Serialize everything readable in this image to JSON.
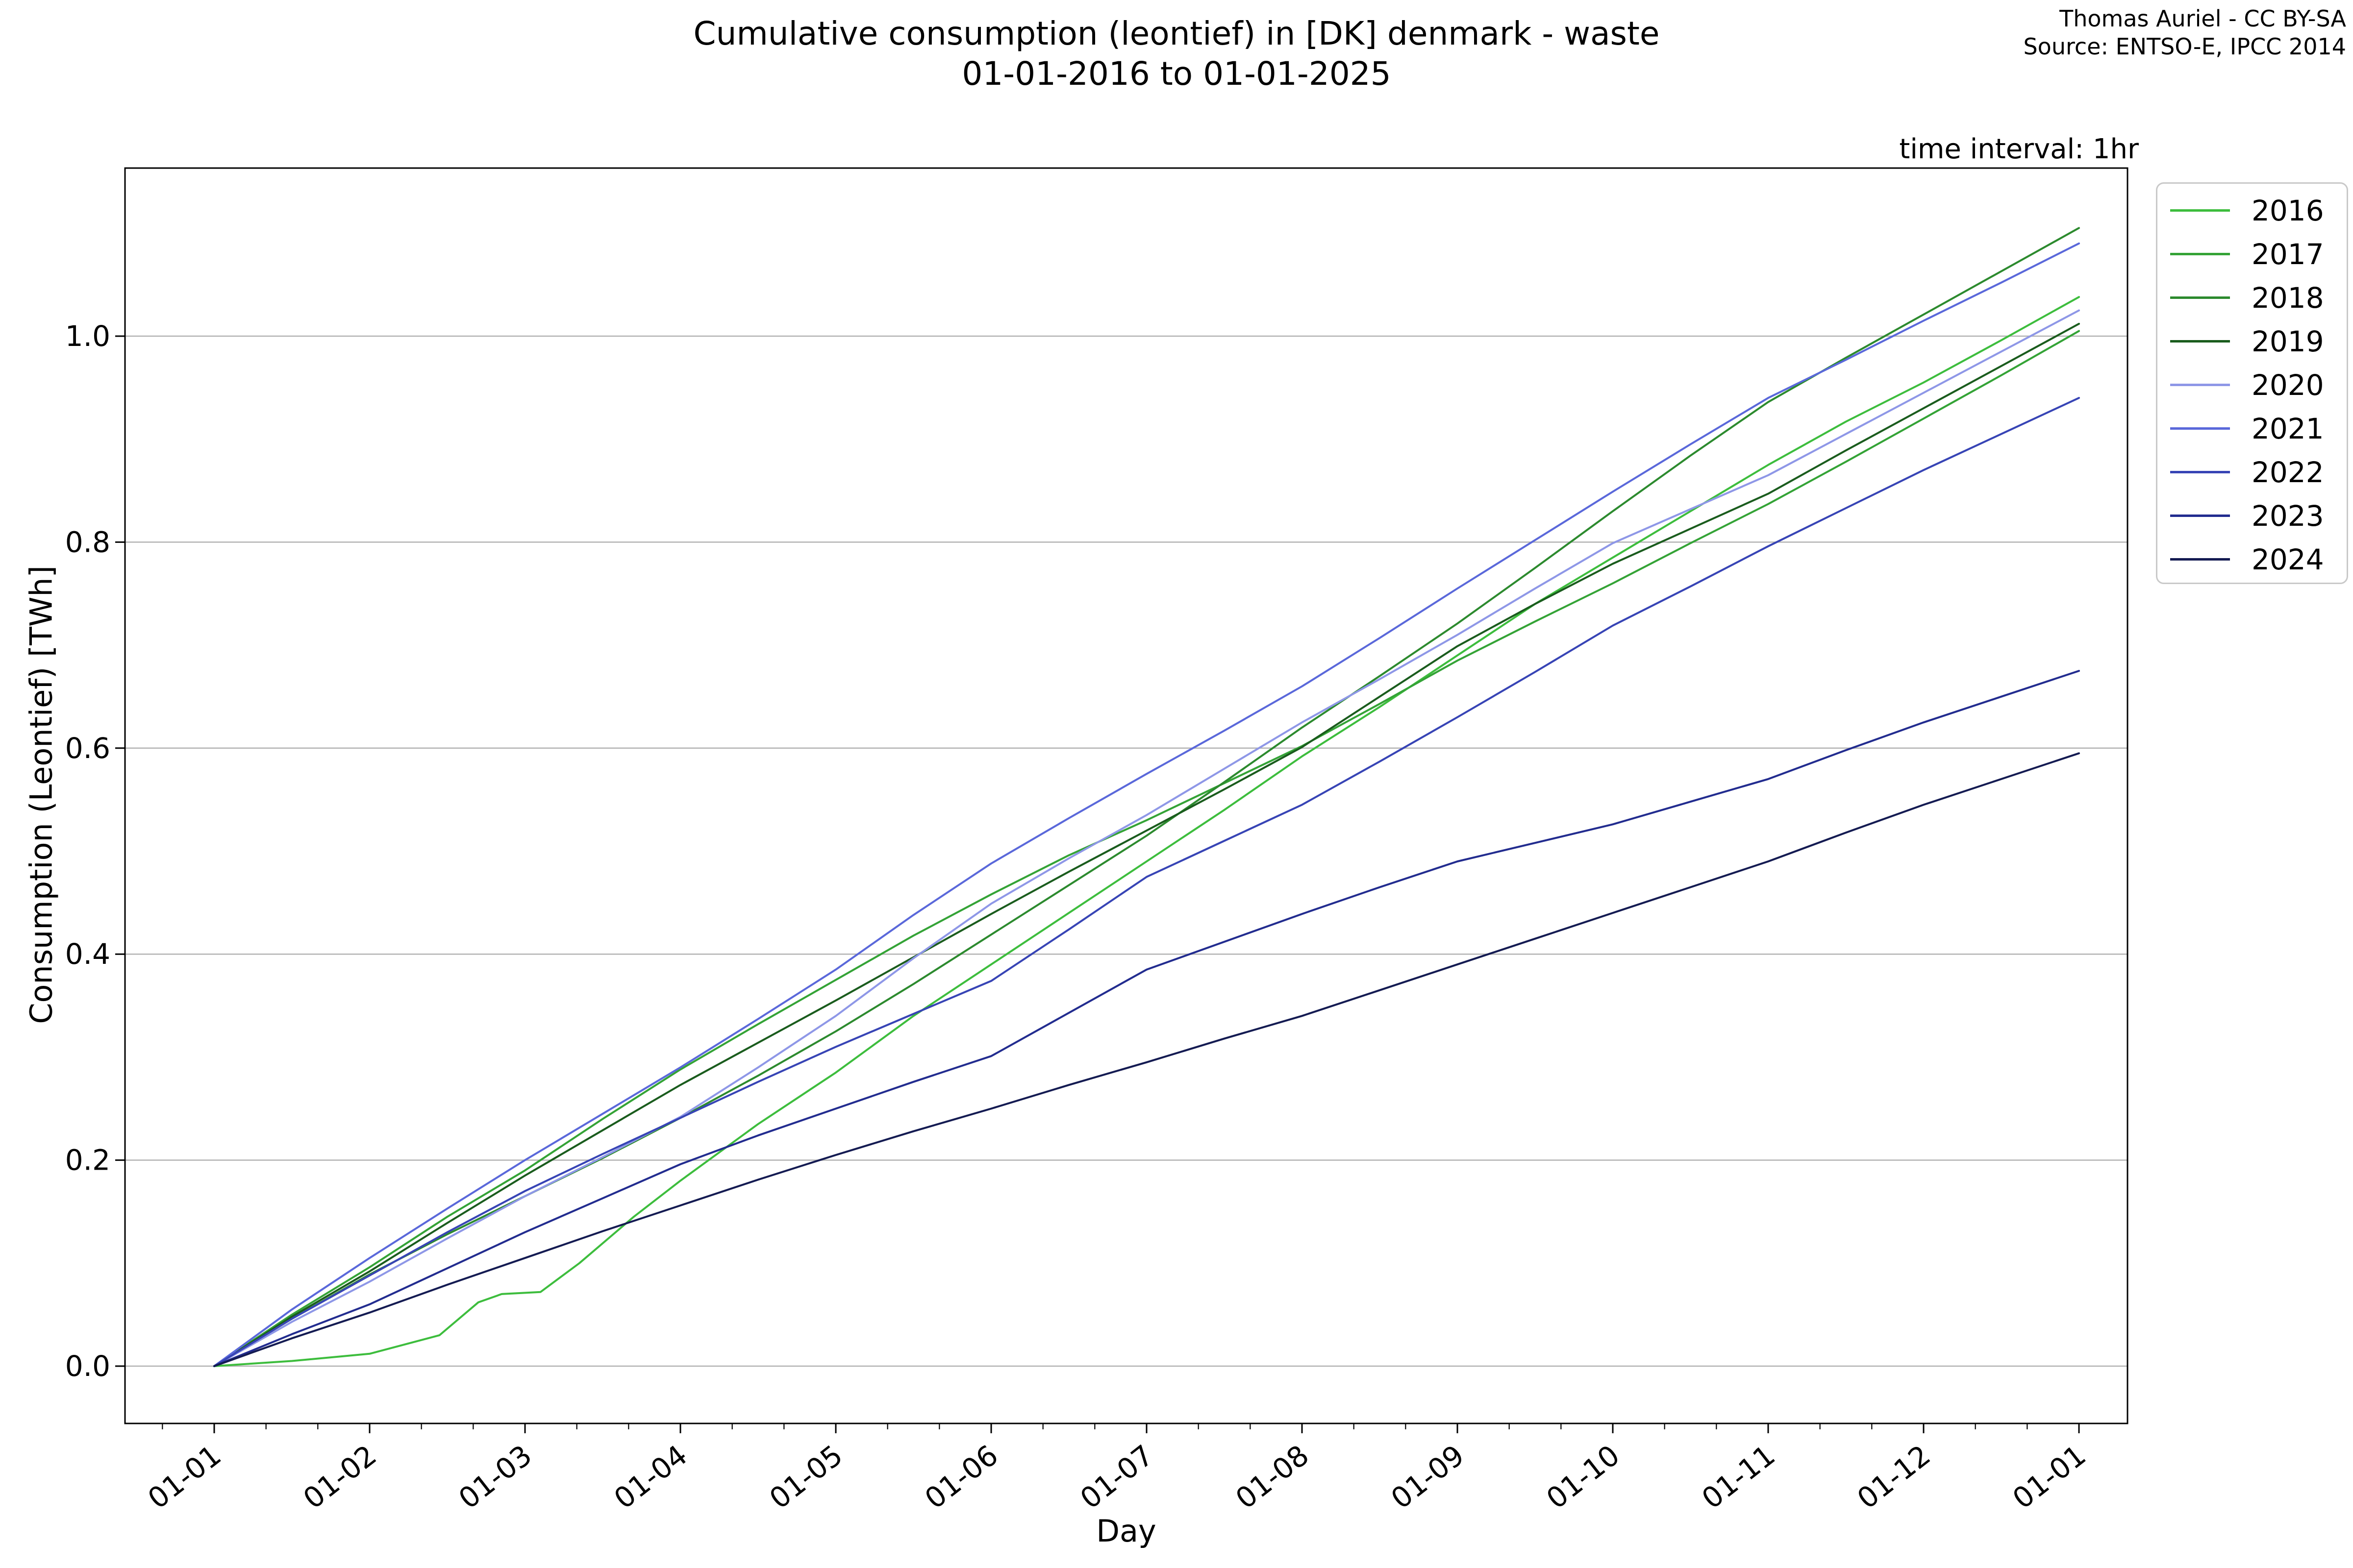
{
  "header": {
    "title_line1": "Cumulative consumption (leontief) in [DK] denmark - waste",
    "title_line2": "01-01-2016 to 01-01-2025",
    "attribution_line1": "Thomas Auriel - CC BY-SA",
    "attribution_line2": "Source: ENTSO-E, IPCC 2014",
    "time_interval_note": "time interval: 1hr"
  },
  "chart_data": {
    "type": "line",
    "title": "Cumulative consumption (leontief) in [DK] denmark - waste 01-01-2016 to 01-01-2025",
    "xlabel": "Day",
    "ylabel": "Consumption (Leontief) [TWh]",
    "x_tick_labels": [
      "01-01",
      "01-02",
      "01-03",
      "01-04",
      "01-05",
      "01-06",
      "01-07",
      "01-08",
      "01-09",
      "01-10",
      "01-11",
      "01-12",
      "01-01"
    ],
    "y_ticks": [
      0.0,
      0.2,
      0.4,
      0.6,
      0.8,
      1.0
    ],
    "y_tick_labels": [
      "0.0",
      "0.2",
      "0.4",
      "0.6",
      "0.8",
      "1.0"
    ],
    "ylim": [
      -0.054,
      1.163
    ],
    "x_unit": "months_from_jan1",
    "grid": "horizontal",
    "legend_position": "outside-right-top",
    "frame_color": "#000000",
    "grid_color": "#b3b3b3",
    "series": [
      {
        "name": "2016",
        "color": "#3dbd3d",
        "points": [
          [
            0,
            0
          ],
          [
            0.5,
            0.005
          ],
          [
            1,
            0.012
          ],
          [
            1.45,
            0.03
          ],
          [
            1.7,
            0.062
          ],
          [
            1.85,
            0.07
          ],
          [
            2.1,
            0.072
          ],
          [
            2.35,
            0.1
          ],
          [
            2.7,
            0.145
          ],
          [
            3,
            0.18
          ],
          [
            3.5,
            0.235
          ],
          [
            4,
            0.285
          ],
          [
            4.5,
            0.34
          ],
          [
            5,
            0.39
          ],
          [
            5.5,
            0.44
          ],
          [
            6,
            0.49
          ],
          [
            6.5,
            0.54
          ],
          [
            7,
            0.592
          ],
          [
            7.5,
            0.64
          ],
          [
            8,
            0.69
          ],
          [
            8.5,
            0.74
          ],
          [
            9,
            0.785
          ],
          [
            9.5,
            0.83
          ],
          [
            10,
            0.875
          ],
          [
            10.5,
            0.917
          ],
          [
            11,
            0.955
          ],
          [
            11.5,
            0.996
          ],
          [
            12,
            1.038
          ]
        ]
      },
      {
        "name": "2017",
        "color": "#34a336",
        "points": [
          [
            0,
            0
          ],
          [
            0.5,
            0.05
          ],
          [
            1,
            0.096
          ],
          [
            1.5,
            0.145
          ],
          [
            2,
            0.19
          ],
          [
            2.5,
            0.24
          ],
          [
            3,
            0.288
          ],
          [
            3.5,
            0.332
          ],
          [
            4,
            0.375
          ],
          [
            4.5,
            0.418
          ],
          [
            5,
            0.458
          ],
          [
            5.5,
            0.496
          ],
          [
            6,
            0.53
          ],
          [
            6.5,
            0.566
          ],
          [
            7,
            0.602
          ],
          [
            7.5,
            0.643
          ],
          [
            8,
            0.685
          ],
          [
            8.5,
            0.723
          ],
          [
            9,
            0.76
          ],
          [
            9.5,
            0.799
          ],
          [
            10,
            0.837
          ],
          [
            10.5,
            0.878
          ],
          [
            11,
            0.92
          ],
          [
            11.5,
            0.962
          ],
          [
            12,
            1.005
          ]
        ]
      },
      {
        "name": "2018",
        "color": "#2c8a2e",
        "points": [
          [
            0,
            0
          ],
          [
            0.5,
            0.046
          ],
          [
            1,
            0.089
          ],
          [
            1.5,
            0.128
          ],
          [
            2,
            0.165
          ],
          [
            2.5,
            0.202
          ],
          [
            3,
            0.241
          ],
          [
            3.5,
            0.282
          ],
          [
            4,
            0.325
          ],
          [
            4.5,
            0.371
          ],
          [
            5,
            0.419
          ],
          [
            5.5,
            0.467
          ],
          [
            6,
            0.515
          ],
          [
            6.5,
            0.567
          ],
          [
            7,
            0.62
          ],
          [
            7.5,
            0.67
          ],
          [
            8,
            0.721
          ],
          [
            8.5,
            0.775
          ],
          [
            9,
            0.83
          ],
          [
            9.5,
            0.884
          ],
          [
            10,
            0.936
          ],
          [
            10.5,
            0.979
          ],
          [
            11,
            1.021
          ],
          [
            11.5,
            1.063
          ],
          [
            12,
            1.105
          ]
        ]
      },
      {
        "name": "2019",
        "color": "#1a5c1d",
        "points": [
          [
            0,
            0
          ],
          [
            0.5,
            0.048
          ],
          [
            1,
            0.092
          ],
          [
            1.5,
            0.139
          ],
          [
            2,
            0.185
          ],
          [
            2.5,
            0.229
          ],
          [
            3,
            0.273
          ],
          [
            3.5,
            0.314
          ],
          [
            4,
            0.355
          ],
          [
            4.5,
            0.397
          ],
          [
            5,
            0.439
          ],
          [
            5.5,
            0.48
          ],
          [
            6,
            0.52
          ],
          [
            6.5,
            0.56
          ],
          [
            7,
            0.601
          ],
          [
            7.5,
            0.65
          ],
          [
            8,
            0.699
          ],
          [
            8.5,
            0.74
          ],
          [
            9,
            0.779
          ],
          [
            9.5,
            0.813
          ],
          [
            10,
            0.847
          ],
          [
            10.5,
            0.889
          ],
          [
            11,
            0.93
          ],
          [
            11.5,
            0.971
          ],
          [
            12,
            1.012
          ]
        ]
      },
      {
        "name": "2020",
        "color": "#8e97e7",
        "points": [
          [
            0,
            0
          ],
          [
            0.5,
            0.043
          ],
          [
            1,
            0.082
          ],
          [
            1.5,
            0.124
          ],
          [
            2,
            0.165
          ],
          [
            2.5,
            0.203
          ],
          [
            3,
            0.242
          ],
          [
            3.5,
            0.29
          ],
          [
            4,
            0.34
          ],
          [
            4.5,
            0.396
          ],
          [
            5,
            0.449
          ],
          [
            5.5,
            0.493
          ],
          [
            6,
            0.535
          ],
          [
            6.5,
            0.58
          ],
          [
            7,
            0.625
          ],
          [
            7.5,
            0.667
          ],
          [
            8,
            0.71
          ],
          [
            8.5,
            0.755
          ],
          [
            9,
            0.799
          ],
          [
            9.5,
            0.832
          ],
          [
            10,
            0.865
          ],
          [
            10.5,
            0.905
          ],
          [
            11,
            0.945
          ],
          [
            11.5,
            0.985
          ],
          [
            12,
            1.025
          ]
        ]
      },
      {
        "name": "2021",
        "color": "#5a68da",
        "points": [
          [
            0,
            0
          ],
          [
            0.5,
            0.055
          ],
          [
            1,
            0.105
          ],
          [
            1.5,
            0.153
          ],
          [
            2,
            0.2
          ],
          [
            2.5,
            0.245
          ],
          [
            3,
            0.29
          ],
          [
            3.5,
            0.337
          ],
          [
            4,
            0.385
          ],
          [
            4.5,
            0.438
          ],
          [
            5,
            0.488
          ],
          [
            5.5,
            0.532
          ],
          [
            6,
            0.575
          ],
          [
            6.5,
            0.617
          ],
          [
            7,
            0.66
          ],
          [
            7.5,
            0.707
          ],
          [
            8,
            0.755
          ],
          [
            8.5,
            0.802
          ],
          [
            9,
            0.849
          ],
          [
            9.5,
            0.895
          ],
          [
            10,
            0.94
          ],
          [
            10.5,
            0.977
          ],
          [
            11,
            1.015
          ],
          [
            11.5,
            1.052
          ],
          [
            12,
            1.09
          ]
        ]
      },
      {
        "name": "2022",
        "color": "#3744b5",
        "points": [
          [
            0,
            0
          ],
          [
            0.5,
            0.046
          ],
          [
            1,
            0.088
          ],
          [
            1.5,
            0.13
          ],
          [
            2,
            0.17
          ],
          [
            2.5,
            0.206
          ],
          [
            3,
            0.241
          ],
          [
            3.5,
            0.276
          ],
          [
            4,
            0.31
          ],
          [
            4.5,
            0.342
          ],
          [
            5,
            0.374
          ],
          [
            5.5,
            0.424
          ],
          [
            6,
            0.475
          ],
          [
            6.5,
            0.51
          ],
          [
            7,
            0.545
          ],
          [
            7.5,
            0.587
          ],
          [
            8,
            0.63
          ],
          [
            8.5,
            0.674
          ],
          [
            9,
            0.719
          ],
          [
            9.5,
            0.757
          ],
          [
            10,
            0.796
          ],
          [
            10.5,
            0.833
          ],
          [
            11,
            0.87
          ],
          [
            11.5,
            0.905
          ],
          [
            12,
            0.94
          ]
        ]
      },
      {
        "name": "2023",
        "color": "#222c8f",
        "points": [
          [
            0,
            0
          ],
          [
            0.5,
            0.031
          ],
          [
            1,
            0.06
          ],
          [
            1.5,
            0.095
          ],
          [
            2,
            0.13
          ],
          [
            2.5,
            0.163
          ],
          [
            3,
            0.196
          ],
          [
            3.5,
            0.224
          ],
          [
            4,
            0.25
          ],
          [
            4.5,
            0.276
          ],
          [
            5,
            0.301
          ],
          [
            5.5,
            0.343
          ],
          [
            6,
            0.385
          ],
          [
            6.5,
            0.412
          ],
          [
            7,
            0.439
          ],
          [
            7.5,
            0.465
          ],
          [
            8,
            0.49
          ],
          [
            8.5,
            0.508
          ],
          [
            9,
            0.526
          ],
          [
            9.5,
            0.548
          ],
          [
            10,
            0.57
          ],
          [
            10.5,
            0.598
          ],
          [
            11,
            0.625
          ],
          [
            11.5,
            0.65
          ],
          [
            12,
            0.675
          ]
        ]
      },
      {
        "name": "2024",
        "color": "#141b52",
        "points": [
          [
            0,
            0
          ],
          [
            0.5,
            0.027
          ],
          [
            1,
            0.052
          ],
          [
            1.5,
            0.079
          ],
          [
            2,
            0.105
          ],
          [
            2.5,
            0.131
          ],
          [
            3,
            0.156
          ],
          [
            3.5,
            0.181
          ],
          [
            4,
            0.205
          ],
          [
            4.5,
            0.228
          ],
          [
            5,
            0.25
          ],
          [
            5.5,
            0.273
          ],
          [
            6,
            0.295
          ],
          [
            6.5,
            0.318
          ],
          [
            7,
            0.34
          ],
          [
            7.5,
            0.365
          ],
          [
            8,
            0.39
          ],
          [
            8.5,
            0.415
          ],
          [
            9,
            0.44
          ],
          [
            9.5,
            0.465
          ],
          [
            10,
            0.49
          ],
          [
            10.5,
            0.518
          ],
          [
            11,
            0.545
          ],
          [
            11.5,
            0.57
          ],
          [
            12,
            0.595
          ]
        ]
      }
    ]
  }
}
